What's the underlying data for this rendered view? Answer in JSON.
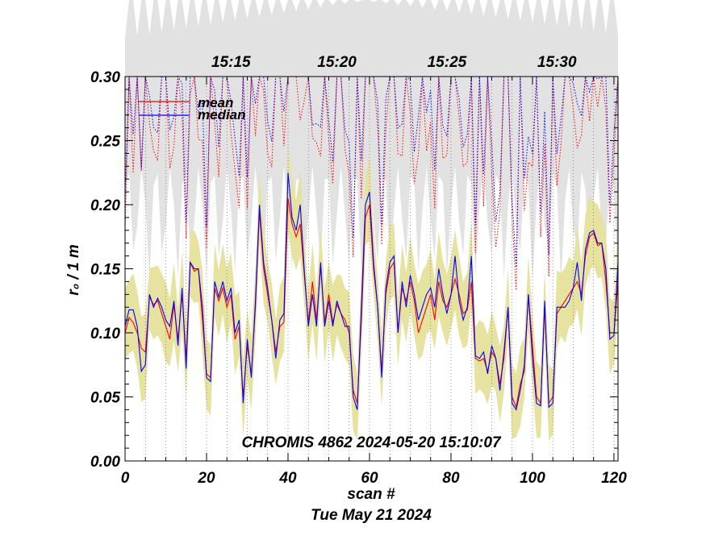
{
  "chart_data": {
    "type": "line",
    "title": "",
    "xlabel": "scan #",
    "ylabel": "r₀ / 1 m",
    "date_label": "Tue May 21 2024",
    "annotation": "CHROMIS 4862 2024-05-20 15:10:07",
    "xlim": [
      0,
      121
    ],
    "ylim": [
      0.0,
      0.3
    ],
    "x_ticks": [
      0,
      20,
      40,
      60,
      80,
      100,
      120
    ],
    "y_ticks": [
      0.0,
      0.05,
      0.1,
      0.15,
      0.2,
      0.25,
      0.3
    ],
    "y_tick_labels": [
      "0.00",
      "0.05",
      "0.10",
      "0.15",
      "0.20",
      "0.25",
      "0.30"
    ],
    "top_time_labels": [
      {
        "scan": 26,
        "label": "15:15"
      },
      {
        "scan": 52,
        "label": "15:20"
      },
      {
        "scan": 79,
        "label": "15:25"
      },
      {
        "scan": 106,
        "label": "15:30"
      }
    ],
    "scan_markers": [
      5,
      10,
      15,
      20,
      25,
      30,
      35,
      40,
      45,
      50,
      55,
      60,
      65,
      70,
      75,
      80,
      85,
      90,
      95,
      100,
      105,
      110,
      115,
      120
    ],
    "colors": {
      "mean": "#ff0000",
      "median": "#0000ff",
      "band": "#e6e2a0",
      "upper_band": "#e2e2e2"
    },
    "legend": [
      "mean",
      "median"
    ],
    "scan": [
      0,
      1,
      2,
      3,
      4,
      5,
      6,
      7,
      8,
      9,
      10,
      11,
      12,
      13,
      14,
      15,
      16,
      17,
      18,
      19,
      20,
      21,
      22,
      23,
      24,
      25,
      26,
      27,
      28,
      29,
      30,
      31,
      32,
      33,
      34,
      35,
      36,
      37,
      38,
      39,
      40,
      41,
      42,
      43,
      44,
      45,
      46,
      47,
      48,
      49,
      50,
      51,
      52,
      53,
      54,
      55,
      56,
      57,
      58,
      59,
      60,
      61,
      62,
      63,
      64,
      65,
      66,
      67,
      68,
      69,
      70,
      71,
      72,
      73,
      74,
      75,
      76,
      77,
      78,
      79,
      80,
      81,
      82,
      83,
      84,
      85,
      86,
      87,
      88,
      89,
      90,
      91,
      92,
      93,
      94,
      95,
      96,
      97,
      98,
      99,
      100,
      101,
      102,
      103,
      104,
      105,
      106,
      107,
      108,
      109,
      110,
      111,
      112,
      113,
      114,
      115,
      116,
      117,
      118,
      119,
      120,
      121
    ],
    "series": [
      {
        "name": "mean",
        "values": [
          0.1,
          0.112,
          0.108,
          0.1,
          0.088,
          0.085,
          0.128,
          0.122,
          0.125,
          0.115,
          0.105,
          0.095,
          0.122,
          0.095,
          0.13,
          0.08,
          0.155,
          0.148,
          0.15,
          0.11,
          0.068,
          0.065,
          0.135,
          0.125,
          0.135,
          0.12,
          0.13,
          0.095,
          0.105,
          0.05,
          0.09,
          0.068,
          0.12,
          0.195,
          0.15,
          0.13,
          0.11,
          0.085,
          0.105,
          0.108,
          0.205,
          0.185,
          0.175,
          0.185,
          0.145,
          0.108,
          0.14,
          0.11,
          0.152,
          0.108,
          0.13,
          0.108,
          0.122,
          0.115,
          0.11,
          0.1,
          0.055,
          0.045,
          0.11,
          0.19,
          0.2,
          0.15,
          0.12,
          0.07,
          0.13,
          0.15,
          0.155,
          0.1,
          0.135,
          0.125,
          0.14,
          0.125,
          0.1,
          0.11,
          0.12,
          0.13,
          0.11,
          0.14,
          0.125,
          0.12,
          0.13,
          0.142,
          0.13,
          0.115,
          0.118,
          0.14,
          0.08,
          0.078,
          0.08,
          0.07,
          0.085,
          0.08,
          0.06,
          0.08,
          0.12,
          0.05,
          0.042,
          0.06,
          0.07,
          0.13,
          0.09,
          0.05,
          0.045,
          0.12,
          0.045,
          0.05,
          0.115,
          0.12,
          0.125,
          0.13,
          0.135,
          0.14,
          0.13,
          0.16,
          0.175,
          0.178,
          0.168,
          0.17,
          0.14,
          0.1,
          0.1,
          0.14
        ]
      },
      {
        "name": "median",
        "values": [
          0.105,
          0.118,
          0.118,
          0.105,
          0.07,
          0.075,
          0.13,
          0.12,
          0.127,
          0.12,
          0.11,
          0.105,
          0.125,
          0.09,
          0.135,
          0.072,
          0.155,
          0.15,
          0.15,
          0.12,
          0.065,
          0.062,
          0.14,
          0.128,
          0.14,
          0.125,
          0.135,
          0.1,
          0.11,
          0.045,
          0.095,
          0.065,
          0.125,
          0.2,
          0.155,
          0.135,
          0.11,
          0.08,
          0.11,
          0.115,
          0.225,
          0.19,
          0.18,
          0.2,
          0.148,
          0.105,
          0.13,
          0.105,
          0.155,
          0.105,
          0.125,
          0.105,
          0.125,
          0.115,
          0.105,
          0.105,
          0.05,
          0.04,
          0.12,
          0.2,
          0.21,
          0.155,
          0.12,
          0.065,
          0.135,
          0.155,
          0.16,
          0.1,
          0.14,
          0.12,
          0.145,
          0.13,
          0.11,
          0.12,
          0.13,
          0.135,
          0.12,
          0.15,
          0.13,
          0.115,
          0.13,
          0.16,
          0.125,
          0.11,
          0.12,
          0.16,
          0.082,
          0.08,
          0.085,
          0.068,
          0.09,
          0.08,
          0.055,
          0.085,
          0.12,
          0.045,
          0.04,
          0.055,
          0.075,
          0.13,
          0.08,
          0.045,
          0.043,
          0.125,
          0.042,
          0.045,
          0.12,
          0.12,
          0.12,
          0.125,
          0.135,
          0.155,
          0.125,
          0.165,
          0.178,
          0.18,
          0.17,
          0.17,
          0.15,
          0.095,
          0.098,
          0.155
        ]
      }
    ]
  }
}
